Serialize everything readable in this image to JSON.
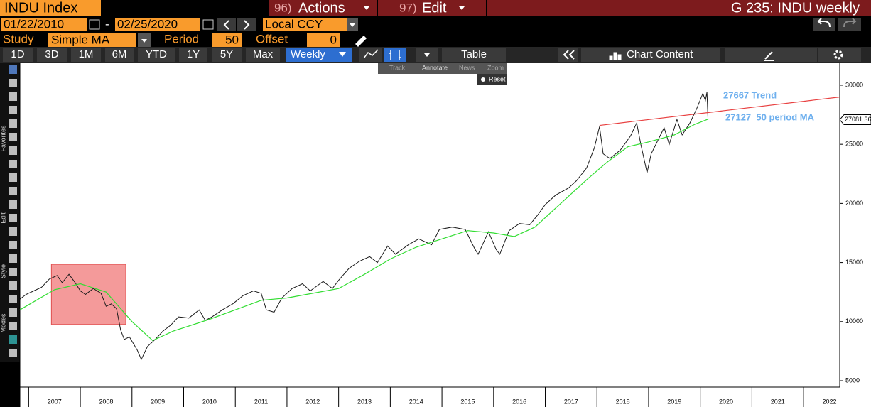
{
  "header": {
    "security": "INDU Index",
    "actions": {
      "number": "96)",
      "label": "Actions"
    },
    "edit": {
      "number": "97)",
      "label": "Edit"
    },
    "page_title": "G 235: INDU weekly"
  },
  "range": {
    "start": "01/22/2010",
    "separator": "-",
    "end": "02/25/2020",
    "currency": "Local CCY"
  },
  "study": {
    "label": "Study",
    "value": "Simple MA",
    "period_label": "Period",
    "period": 50,
    "offset_label": "Offset",
    "offset": 0
  },
  "toolbar": {
    "periods": [
      "1D",
      "3D",
      "1M",
      "6M",
      "YTD",
      "1Y",
      "5Y",
      "Max"
    ],
    "frequency": "Weekly",
    "table": "Table",
    "chart_content": "Chart Content"
  },
  "menu": {
    "items": [
      "Track",
      "Annotate",
      "News",
      "Zoom"
    ],
    "reset": "Reset"
  },
  "side_labels": [
    "Favorites",
    "Edit",
    "Style",
    "Modes"
  ],
  "chart_data": {
    "type": "line",
    "xlim": [
      2006.83,
      2022.7
    ],
    "xticks": [
      2007,
      2008,
      2009,
      2010,
      2011,
      2012,
      2013,
      2014,
      2015,
      2016,
      2017,
      2018,
      2019,
      2020,
      2021,
      2022
    ],
    "ylim": [
      4460,
      31920
    ],
    "yticks": [
      5000,
      10000,
      15000,
      20000,
      25000,
      30000
    ],
    "grid": false,
    "series": [
      {
        "color": "#1a1a1a",
        "x": [
          2006.83,
          2006.95,
          2007.1,
          2007.25,
          2007.4,
          2007.55,
          2007.65,
          2007.78,
          2007.9,
          2008.0,
          2008.1,
          2008.25,
          2008.4,
          2008.5,
          2008.6,
          2008.7,
          2008.78,
          2008.85,
          2008.95,
          2009.1,
          2009.18,
          2009.3,
          2009.45,
          2009.6,
          2009.75,
          2009.9,
          2010.1,
          2010.3,
          2010.42,
          2010.55,
          2010.75,
          2010.95,
          2011.15,
          2011.35,
          2011.5,
          2011.6,
          2011.75,
          2011.9,
          2012.1,
          2012.3,
          2012.45,
          2012.7,
          2012.88,
          2013.0,
          2013.2,
          2013.4,
          2013.6,
          2013.75,
          2013.95,
          2014.1,
          2014.35,
          2014.55,
          2014.8,
          2014.95,
          2015.2,
          2015.45,
          2015.63,
          2015.7,
          2015.9,
          2016.05,
          2016.12,
          2016.3,
          2016.5,
          2016.7,
          2016.85,
          2017.0,
          2017.2,
          2017.45,
          2017.6,
          2017.8,
          2017.95,
          2018.05,
          2018.12,
          2018.25,
          2018.45,
          2018.65,
          2018.77,
          2018.85,
          2018.97,
          2019.05,
          2019.3,
          2019.4,
          2019.55,
          2019.65,
          2019.8,
          2019.93,
          2020.05,
          2020.1,
          2020.13,
          2020.15
        ],
        "values": [
          11900,
          12300,
          12600,
          12900,
          13600,
          13900,
          13300,
          14000,
          13300,
          12600,
          12300,
          12800,
          12400,
          11300,
          11500,
          11100,
          9300,
          8500,
          8700,
          7600,
          6800,
          7900,
          8500,
          9200,
          9700,
          10400,
          10300,
          11000,
          10100,
          10400,
          11000,
          11500,
          12200,
          12600,
          12400,
          11000,
          10800,
          12000,
          12800,
          13200,
          12600,
          13400,
          12800,
          13500,
          14500,
          15100,
          15500,
          15000,
          16400,
          15700,
          16500,
          17000,
          16500,
          17800,
          18000,
          17800,
          16200,
          15700,
          17600,
          16100,
          15700,
          17700,
          18300,
          18200,
          19000,
          19900,
          20700,
          21300,
          21900,
          23000,
          24700,
          26500,
          24200,
          23800,
          24500,
          25700,
          26800,
          25000,
          22600,
          24200,
          26400,
          25000,
          27100,
          25800,
          26800,
          28000,
          29300,
          28700,
          29400,
          27081.36
        ]
      },
      {
        "color": "#33dd33",
        "x": [
          2006.83,
          2007.5,
          2008.0,
          2008.5,
          2009.0,
          2009.4,
          2009.8,
          2010.5,
          2011.0,
          2011.5,
          2012.0,
          2012.5,
          2013.0,
          2013.5,
          2014.0,
          2014.5,
          2015.0,
          2015.5,
          2016.0,
          2016.4,
          2016.8,
          2017.3,
          2017.8,
          2018.2,
          2018.6,
          2019.0,
          2019.5,
          2019.9,
          2020.15
        ],
        "values": [
          11000,
          12700,
          13200,
          12500,
          10000,
          8400,
          9200,
          10200,
          11000,
          11800,
          12000,
          12400,
          12800,
          14000,
          15300,
          16300,
          17000,
          17700,
          17500,
          17200,
          18000,
          20000,
          22000,
          23500,
          24800,
          25200,
          25800,
          26700,
          27127
        ]
      }
    ],
    "trend": {
      "label": "27667 Trend",
      "x": [
        2018.05,
        2022.7
      ],
      "values": [
        26600,
        29000
      ],
      "color": "#e84040"
    },
    "ma_label": "27127  50 period MA",
    "highlight": {
      "x": [
        2007.44,
        2008.88
      ],
      "y": [
        9760,
        14850
      ],
      "color": "#f07878"
    }
  }
}
